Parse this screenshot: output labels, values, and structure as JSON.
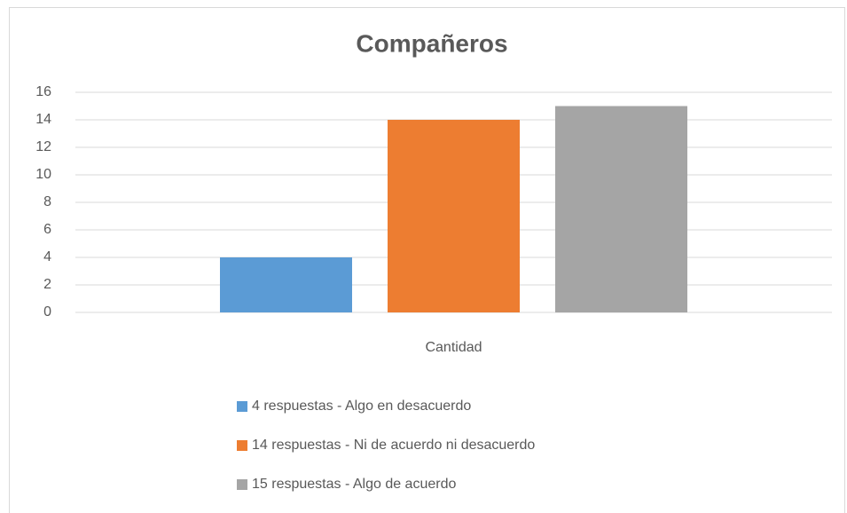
{
  "chart_data": {
    "type": "bar",
    "title": "Compañeros",
    "categories": [
      "Cantidad"
    ],
    "series": [
      {
        "name": "4 respuestas - Algo en desacuerdo",
        "color": "#5b9bd5",
        "values": [
          4
        ]
      },
      {
        "name": "14 respuestas - Ni de acuerdo ni desacuerdo",
        "color": "#ed7d31",
        "values": [
          14
        ]
      },
      {
        "name": "15 respuestas - Algo de acuerdo",
        "color": "#a5a5a5",
        "values": [
          15
        ]
      }
    ],
    "ylim": [
      0,
      16
    ],
    "yticks": [
      0,
      2,
      4,
      6,
      8,
      10,
      12,
      14,
      16
    ],
    "grid": true,
    "legend": "bottom"
  }
}
